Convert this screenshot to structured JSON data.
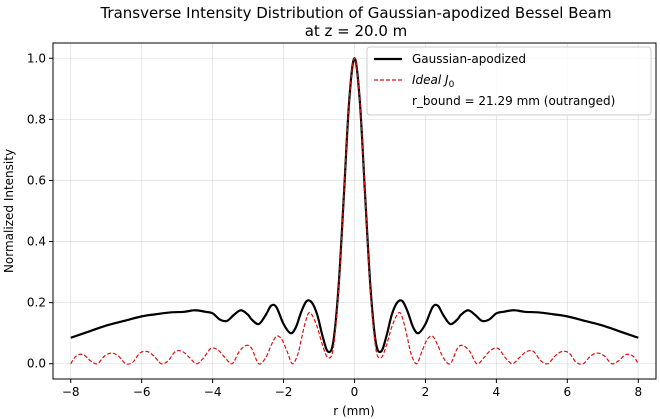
{
  "chart_data": {
    "type": "line",
    "title_lines": [
      "Transverse Intensity Distribution of Gaussian-apodized Bessel Beam",
      "at z = 20.0 m"
    ],
    "xlabel": "r (mm)",
    "ylabel": "Normalized Intensity",
    "xlim": [
      -8.5,
      8.5
    ],
    "ylim": [
      -0.05,
      1.05
    ],
    "xticks": [
      -8,
      -6,
      -4,
      -2,
      0,
      2,
      4,
      6,
      8
    ],
    "xtick_labels": [
      "−8",
      "−6",
      "−4",
      "−2",
      "0",
      "2",
      "4",
      "6",
      "8"
    ],
    "yticks": [
      0.0,
      0.2,
      0.4,
      0.6,
      0.8,
      1.0
    ],
    "ytick_labels": [
      "0.0",
      "0.2",
      "0.4",
      "0.6",
      "0.8",
      "1.0"
    ],
    "grid": true,
    "legend_position": "top-right",
    "series": [
      {
        "name": "Gaussian-apodized",
        "color": "#000000",
        "style": "solid",
        "x": [
          0.0,
          0.15,
          0.3,
          0.45,
          0.6,
          0.75,
          0.9,
          1.05,
          1.2,
          1.35,
          1.5,
          1.65,
          1.8,
          2.0,
          2.2,
          2.35,
          2.5,
          2.7,
          2.9,
          3.0,
          3.2,
          3.4,
          3.6,
          3.8,
          4.0,
          4.2,
          4.5,
          4.8,
          5.2,
          5.6,
          6.0,
          6.5,
          7.0,
          7.5,
          8.0
        ],
        "y": [
          1.0,
          0.86,
          0.55,
          0.25,
          0.07,
          0.04,
          0.09,
          0.16,
          0.2,
          0.205,
          0.17,
          0.12,
          0.1,
          0.13,
          0.185,
          0.19,
          0.16,
          0.13,
          0.145,
          0.16,
          0.175,
          0.16,
          0.14,
          0.145,
          0.165,
          0.17,
          0.175,
          0.17,
          0.168,
          0.162,
          0.155,
          0.14,
          0.125,
          0.105,
          0.085
        ]
      },
      {
        "name": "Ideal J0",
        "color": "#dd1111",
        "style": "dashed",
        "x": [
          0.0,
          0.15,
          0.3,
          0.45,
          0.6,
          0.75,
          0.9,
          1.05,
          1.2,
          1.3,
          1.4,
          1.5,
          1.6,
          1.75,
          1.9,
          2.05,
          2.2,
          2.35,
          2.5,
          2.7,
          2.9,
          3.05,
          3.25,
          3.45,
          3.65,
          3.85,
          4.05,
          4.25,
          4.45,
          4.65,
          4.85,
          5.05,
          5.25,
          5.45,
          5.65,
          5.85,
          6.05,
          6.25,
          6.45,
          6.65,
          6.85,
          7.05,
          7.25,
          7.45,
          7.65,
          7.85,
          8.0
        ],
        "y": [
          1.0,
          0.86,
          0.55,
          0.24,
          0.05,
          0.02,
          0.06,
          0.12,
          0.16,
          0.165,
          0.13,
          0.08,
          0.03,
          0.0,
          0.04,
          0.08,
          0.09,
          0.06,
          0.02,
          0.0,
          0.05,
          0.06,
          0.04,
          0.0,
          0.02,
          0.045,
          0.05,
          0.02,
          0.0,
          0.02,
          0.04,
          0.04,
          0.01,
          0.0,
          0.025,
          0.04,
          0.035,
          0.005,
          0.0,
          0.025,
          0.035,
          0.025,
          0.0,
          0.01,
          0.03,
          0.025,
          0.0
        ]
      }
    ],
    "mirror_about_zero": true,
    "legend": {
      "entries": [
        {
          "label": "Gaussian-apodized",
          "color": "#000000",
          "style": "solid"
        },
        {
          "label": "Ideal J",
          "subscript": "0",
          "color": "#dd1111",
          "style": "dashed"
        },
        {
          "label": "r_bound = 21.29 mm (outranged)",
          "color": "none",
          "style": "none"
        }
      ]
    }
  }
}
